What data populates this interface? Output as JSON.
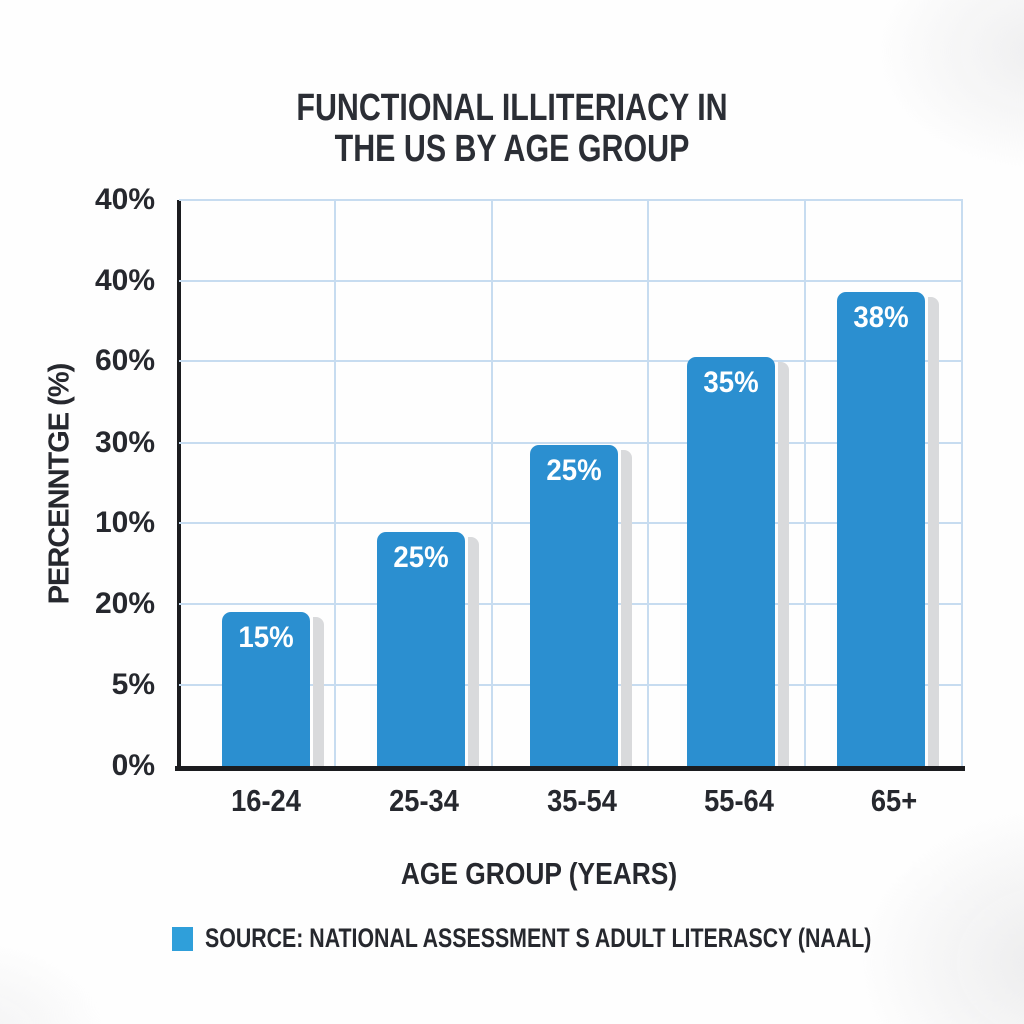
{
  "title": {
    "line1": "FUNCTIONAL ILLITERIACY IN",
    "line2": "THE US BY AGE GROUP"
  },
  "y_axis": {
    "title": "PERCENNTGE (%)",
    "tick_labels": [
      "40%",
      "40%",
      "60%",
      "30%",
      "10%",
      "20%",
      "5%",
      "0%"
    ]
  },
  "x_axis": {
    "title": "AGE GROUP (YEARS)",
    "categories": [
      "16-24",
      "25-34",
      "35-54",
      "55-64",
      "65+"
    ]
  },
  "bars": [
    {
      "category": "16-24",
      "label": "15%",
      "value": 15
    },
    {
      "category": "25-34",
      "label": "25%",
      "value": 25
    },
    {
      "category": "35-54",
      "label": "25%",
      "value": 25
    },
    {
      "category": "55-64",
      "label": "35%",
      "value": 35
    },
    {
      "category": "65+",
      "label": "38%",
      "value": 38
    }
  ],
  "legend": {
    "source_label": "SOURCE: NATIONAL ASSESSMENT S ADULT LITERASCY (NAAL)"
  },
  "colors": {
    "bar": "#2b8fd0",
    "legend_swatch": "#2f9fda",
    "gridline": "#c7dcf0",
    "axis": "#1b1c1f",
    "text": "#2b2e35",
    "bar_shadow": "#d9dadc",
    "bar_value_text": "#ffffff"
  },
  "chart_data": {
    "type": "bar",
    "title": "FUNCTIONAL ILLITERIACY IN THE US BY AGE GROUP",
    "categories": [
      "16-24",
      "25-34",
      "35-54",
      "55-64",
      "65+"
    ],
    "values": [
      15,
      25,
      25,
      35,
      38
    ],
    "data_labels": [
      "15%",
      "25%",
      "25%",
      "35%",
      "38%"
    ],
    "xlabel": "AGE GROUP (YEARS)",
    "ylabel": "PERCENNTGE (%)",
    "y_tick_labels_top_to_bottom": [
      "40%",
      "40%",
      "60%",
      "30%",
      "10%",
      "20%",
      "5%",
      "0%"
    ],
    "grid": true,
    "legend_position": "bottom",
    "source": "SOURCE: NATIONAL ASSESSMENT S ADULT LITERASCY (NAAL)"
  }
}
